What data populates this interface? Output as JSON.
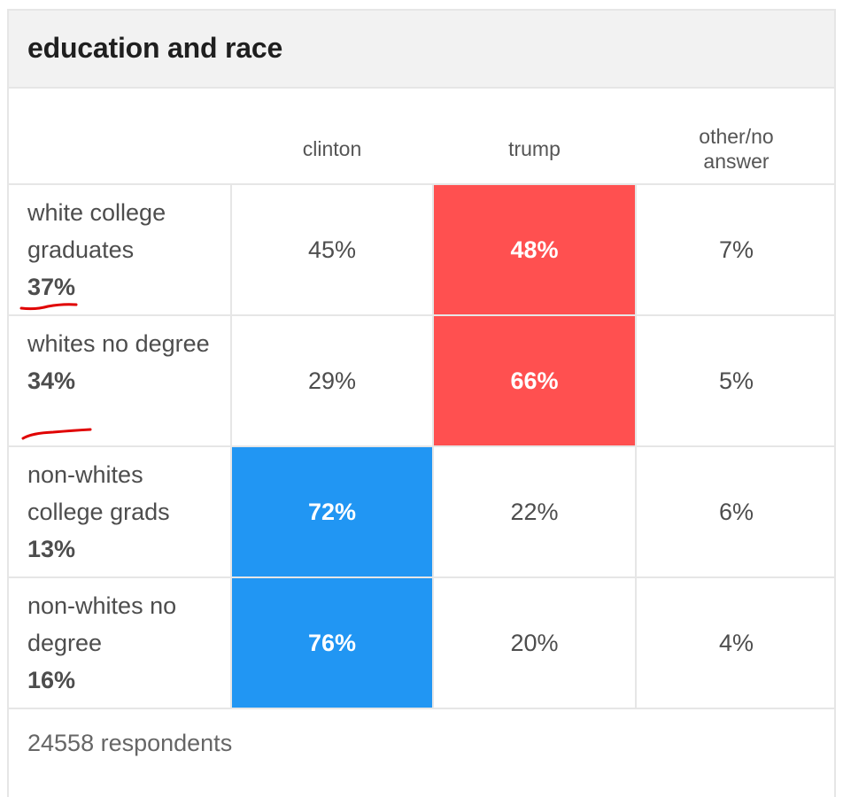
{
  "title": "education and race",
  "colors": {
    "trump_win": "#ff5050",
    "clinton_win": "#2196f3",
    "annotation": "#e00000"
  },
  "columns": [
    "clinton",
    "trump",
    "other/no answer"
  ],
  "rows": [
    {
      "label": "white college graduates",
      "share": "37%",
      "values": [
        "45%",
        "48%",
        "7%"
      ],
      "winner": 1,
      "underlined": true
    },
    {
      "label": "whites no degree",
      "share": "34%",
      "values": [
        "29%",
        "66%",
        "5%"
      ],
      "winner": 1,
      "underlined": true
    },
    {
      "label": "non-whites college grads",
      "share": "13%",
      "values": [
        "72%",
        "22%",
        "6%"
      ],
      "winner": 0,
      "underlined": false
    },
    {
      "label": "non-whites no degree",
      "share": "16%",
      "values": [
        "76%",
        "20%",
        "4%"
      ],
      "winner": 0,
      "underlined": false
    }
  ],
  "footer": "24558 respondents",
  "chart_data": {
    "type": "table",
    "title": "education and race",
    "columns": [
      "clinton",
      "trump",
      "other/no answer"
    ],
    "categories": [
      "white college graduates",
      "whites no degree",
      "non-whites college grads",
      "non-whites no degree"
    ],
    "category_share_pct": [
      37,
      34,
      13,
      16
    ],
    "series": [
      {
        "name": "clinton",
        "values": [
          45,
          29,
          72,
          76
        ]
      },
      {
        "name": "trump",
        "values": [
          48,
          66,
          22,
          20
        ]
      },
      {
        "name": "other/no answer",
        "values": [
          7,
          5,
          6,
          4
        ]
      }
    ],
    "highlighted_winner": [
      "trump",
      "trump",
      "clinton",
      "clinton"
    ],
    "annotations": [
      "red hand-drawn underline under 37%",
      "red hand-drawn underline under 34%"
    ],
    "respondents": 24558
  }
}
